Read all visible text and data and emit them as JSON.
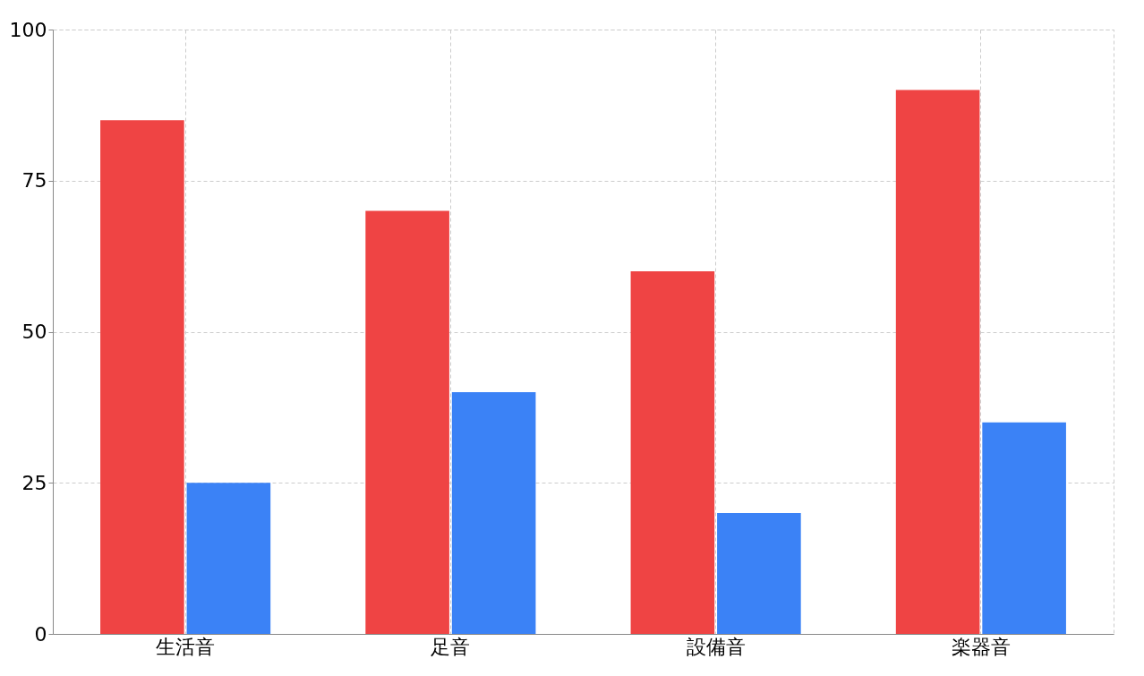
{
  "chart_data": {
    "type": "bar",
    "categories": [
      "生活音",
      "足音",
      "設備音",
      "楽器音"
    ],
    "series": [
      {
        "color": "#ef4444",
        "values": [
          85,
          70,
          60,
          90
        ]
      },
      {
        "color": "#3b82f6",
        "values": [
          25,
          40,
          20,
          35
        ]
      }
    ],
    "ylim": [
      0,
      100
    ],
    "yticks": [
      0,
      25,
      50,
      75,
      100
    ],
    "grid": true,
    "legend": false
  }
}
